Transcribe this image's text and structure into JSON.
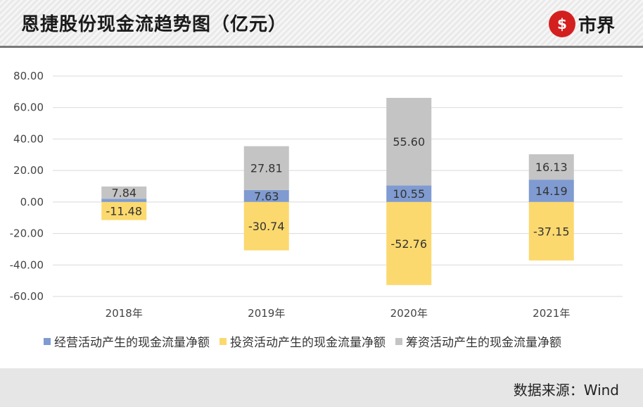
{
  "header": {
    "title": "恩捷股份现金流趋势图（亿元）",
    "logo_text": "市界",
    "logo_icon": "dollar-circle-icon"
  },
  "footer": {
    "source": "数据来源：Wind"
  },
  "colors": {
    "operating": "#7f9bd1",
    "investing": "#fbd96e",
    "financing": "#c4c4c4",
    "brand_red": "#d41f1f"
  },
  "chart_data": {
    "type": "bar",
    "stacked": true,
    "categories": [
      "2018年",
      "2019年",
      "2020年",
      "2021年"
    ],
    "series": [
      {
        "name": "经营活动产生的现金流量净额",
        "values": [
          2.0,
          7.63,
          10.55,
          14.19
        ],
        "labels": [
          "",
          "7.63",
          "10.55",
          "14.19"
        ]
      },
      {
        "name": "投资活动产生的现金流量净额",
        "values": [
          -11.48,
          -30.74,
          -52.76,
          -37.15
        ],
        "labels": [
          "-11.48",
          "-30.74",
          "-52.76",
          "-37.15"
        ]
      },
      {
        "name": "筹资活动产生的现金流量净额",
        "values": [
          7.84,
          27.81,
          55.6,
          16.13
        ],
        "labels": [
          "7.84",
          "27.81",
          "55.60",
          "16.13"
        ]
      }
    ],
    "yticks": [
      "80.00",
      "60.00",
      "40.00",
      "20.00",
      "0.00",
      "-20.00",
      "-40.00",
      "-60.00"
    ],
    "ylim": [
      -60,
      80
    ],
    "grid": true,
    "legend_position": "bottom"
  }
}
